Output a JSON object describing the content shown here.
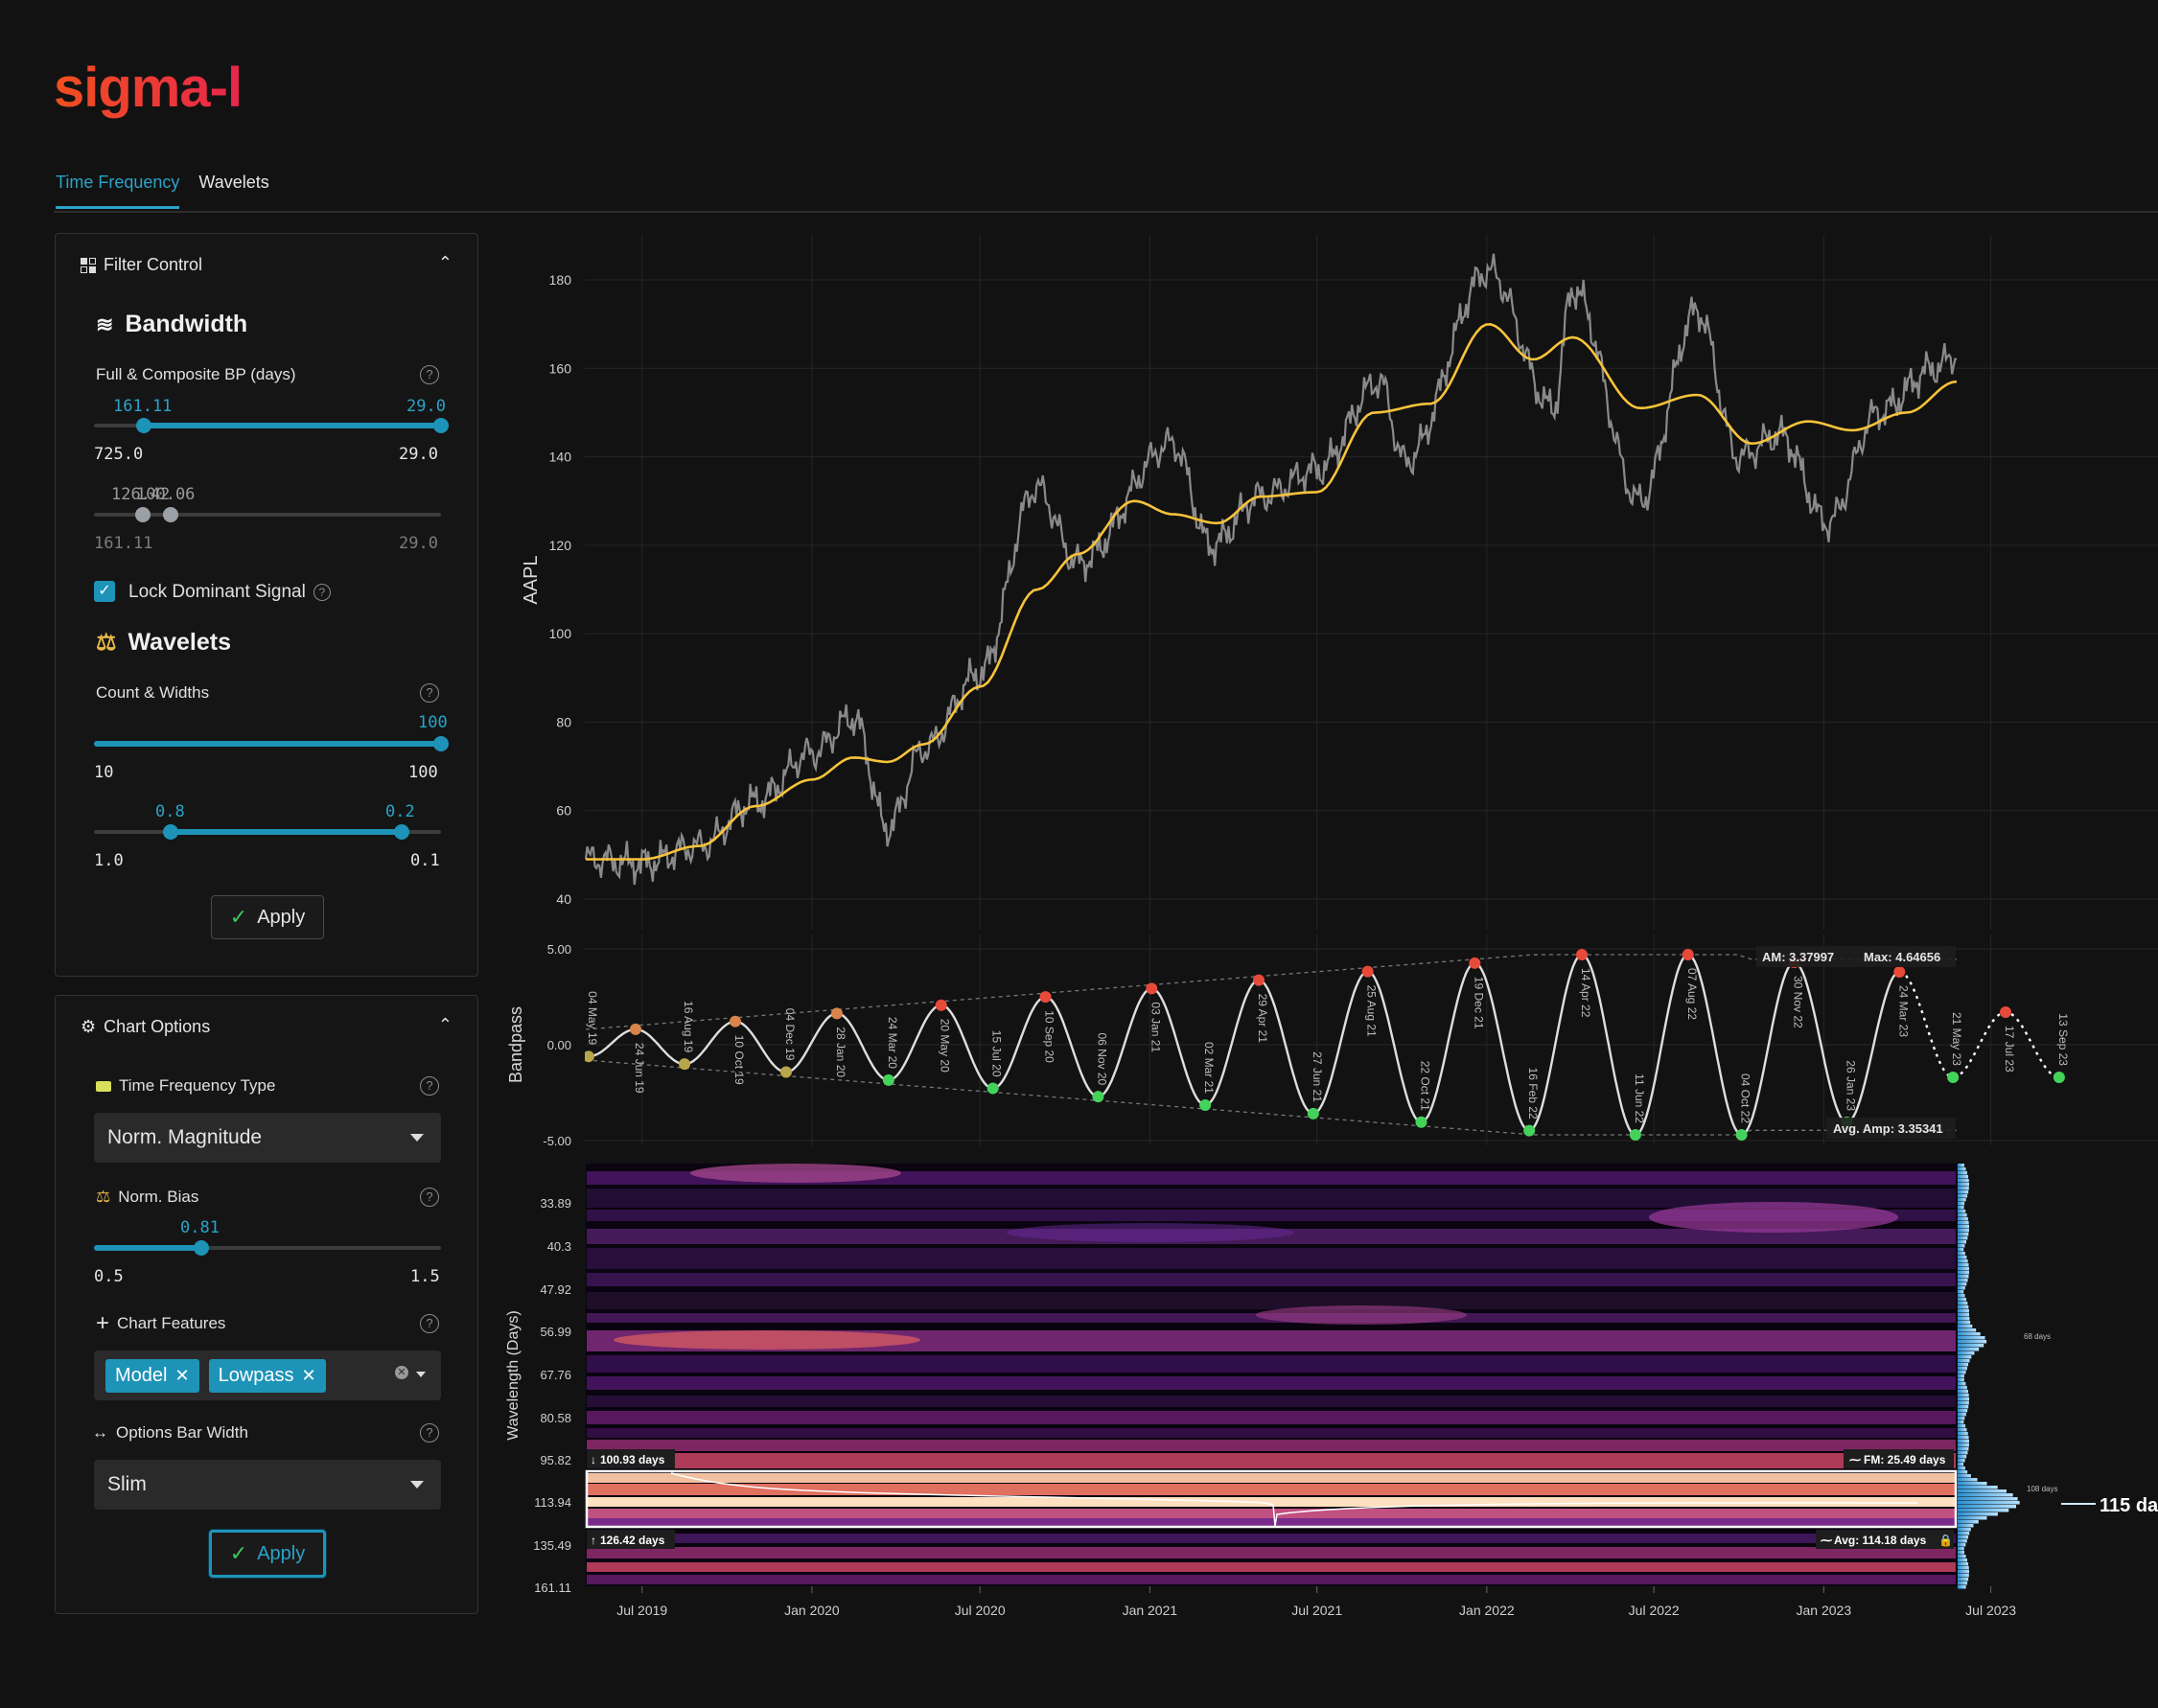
{
  "app": {
    "logo": "sigma-l"
  },
  "tabs": [
    {
      "label": "Time Frequency",
      "active": true
    },
    {
      "label": "Wavelets",
      "active": false
    }
  ],
  "filter_control": {
    "title": "Filter Control",
    "bandwidth_title": "Bandwidth",
    "full_composite_label": "Full & Composite BP (days)",
    "slider1": {
      "low": "161.11",
      "high": "29.0",
      "min": "725.0",
      "max": "29.0"
    },
    "slider2": {
      "overlap_text_a": "126.42",
      "overlap_text_b": "100.06",
      "min": "161.11",
      "max": "29.0"
    },
    "lock_dominant_label": "Lock Dominant Signal",
    "lock_dominant_checked": true,
    "wavelets_title": "Wavelets",
    "count_widths_label": "Count & Widths",
    "slider3": {
      "value": "100",
      "min": "10",
      "max": "100"
    },
    "slider4": {
      "low": "0.8",
      "high": "0.2",
      "min": "1.0",
      "max": "0.1"
    },
    "apply_label": "Apply"
  },
  "chart_options": {
    "title": "Chart Options",
    "tf_type_label": "Time Frequency Type",
    "tf_type_value": "Norm. Magnitude",
    "norm_bias_label": "Norm. Bias",
    "norm_bias": {
      "value": "0.81",
      "min": "0.5",
      "max": "1.5"
    },
    "chart_features_label": "Chart Features",
    "chart_features": [
      "Model",
      "Lowpass"
    ],
    "options_bar_label": "Options Bar Width",
    "options_bar_value": "Slim",
    "apply_label": "Apply"
  },
  "colors": {
    "accent": "#1e93b8",
    "price": "#8a8a8a",
    "model": "#f7c33a",
    "peak": "#e84a3a",
    "trough": "#44d35a",
    "brand": "#f0501e"
  },
  "chart_data": [
    {
      "type": "line",
      "ylabel": "AAPL",
      "yticks": [
        180,
        160,
        140,
        120,
        100,
        80,
        60,
        40
      ],
      "ylim": [
        37,
        190
      ],
      "series": [
        {
          "name": "",
          "x": [
            "2019-05-01",
            "2019-07-01",
            "2019-09-01",
            "2019-11-01",
            "2020-01-01",
            "2020-02-15",
            "2020-03-23",
            "2020-05-01",
            "2020-07-01",
            "2020-08-31",
            "2020-10-15",
            "2021-01-26",
            "2021-03-08",
            "2021-05-01",
            "2021-07-01",
            "2021-09-07",
            "2021-10-04",
            "2022-01-03",
            "2022-03-14",
            "2022-04-04",
            "2022-06-16",
            "2022-08-17",
            "2022-10-01",
            "2022-11-15",
            "2023-01-05",
            "2023-03-01",
            "2023-05-01",
            "2023-05-25"
          ],
          "y": [
            49,
            48,
            52,
            62,
            73,
            81,
            56,
            74,
            91,
            133,
            116,
            143,
            120,
            131,
            137,
            157,
            139,
            182,
            151,
            178,
            130,
            173,
            140,
            145,
            125,
            150,
            160,
            163
          ]
        },
        {
          "name": "",
          "x": [
            "2019-05-01",
            "2019-07-01",
            "2019-09-01",
            "2019-11-01",
            "2020-01-01",
            "2020-02-15",
            "2020-03-23",
            "2020-05-01",
            "2020-07-01",
            "2020-09-01",
            "2020-10-15",
            "2020-12-15",
            "2021-01-26",
            "2021-03-15",
            "2021-05-01",
            "2021-07-01",
            "2021-09-01",
            "2021-11-01",
            "2022-01-03",
            "2022-02-20",
            "2022-04-04",
            "2022-06-16",
            "2022-08-17",
            "2022-10-15",
            "2022-12-15",
            "2023-02-01",
            "2023-04-01",
            "2023-05-25"
          ],
          "y": [
            49,
            49,
            52,
            61,
            67,
            72,
            71,
            75,
            88,
            110,
            118,
            130,
            127,
            125,
            131,
            132,
            150,
            152,
            170,
            162,
            167,
            151,
            154,
            143,
            148,
            146,
            150,
            157
          ]
        }
      ]
    },
    {
      "type": "line",
      "ylabel": "Bandpass",
      "yticks": [
        "5.00",
        "0.00",
        "-5.00"
      ],
      "ylim": [
        -5.5,
        5.5
      ],
      "annotations": {
        "am": "AM: 3.37997",
        "max": "Max: 4.64656",
        "avg_amp": "Avg. Amp: 3.35341"
      },
      "cycle_labels": [
        "04 May 19",
        "24 Jun 19",
        "16 Aug 19",
        "10 Oct 19",
        "04 Dec 19",
        "28 Jan 20",
        "24 Mar 20",
        "20 May 20",
        "15 Jul 20",
        "10 Sep 20",
        "06 Nov 20",
        "03 Jan 21",
        "02 Mar 21",
        "29 Apr 21",
        "27 Jun 21",
        "25 Aug 21",
        "22 Oct 21",
        "19 Dec 21",
        "16 Feb 22",
        "14 Apr 22",
        "11 Jun 22",
        "07 Aug 22",
        "04 Oct 22",
        "30 Nov 22",
        "26 Jan 23",
        "24 Mar 23",
        "21 May 23",
        "17 Jul 23",
        "13 Sep 23"
      ]
    },
    {
      "type": "heatmap",
      "ylabel": "Wavelength (Days)",
      "yticks": [
        "33.89",
        "40.3",
        "47.92",
        "56.99",
        "67.76",
        "80.58",
        "95.82",
        "113.94",
        "135.49",
        "161.11"
      ],
      "xticks": [
        "Jul 2019",
        "Jan 2020",
        "Jul 2020",
        "Jan 2021",
        "Jul 2021",
        "Jan 2022",
        "Jul 2022",
        "Jan 2023",
        "Jul 2023"
      ],
      "annotations": {
        "top_band": "100.93 days",
        "bottom_band": "126.42 days",
        "fm": "FM: 25.49 days",
        "avg": "Avg: 114.18 days",
        "side_peak": "115 days",
        "hist_label_1": "68 days",
        "hist_label_2": "108 days"
      }
    }
  ]
}
